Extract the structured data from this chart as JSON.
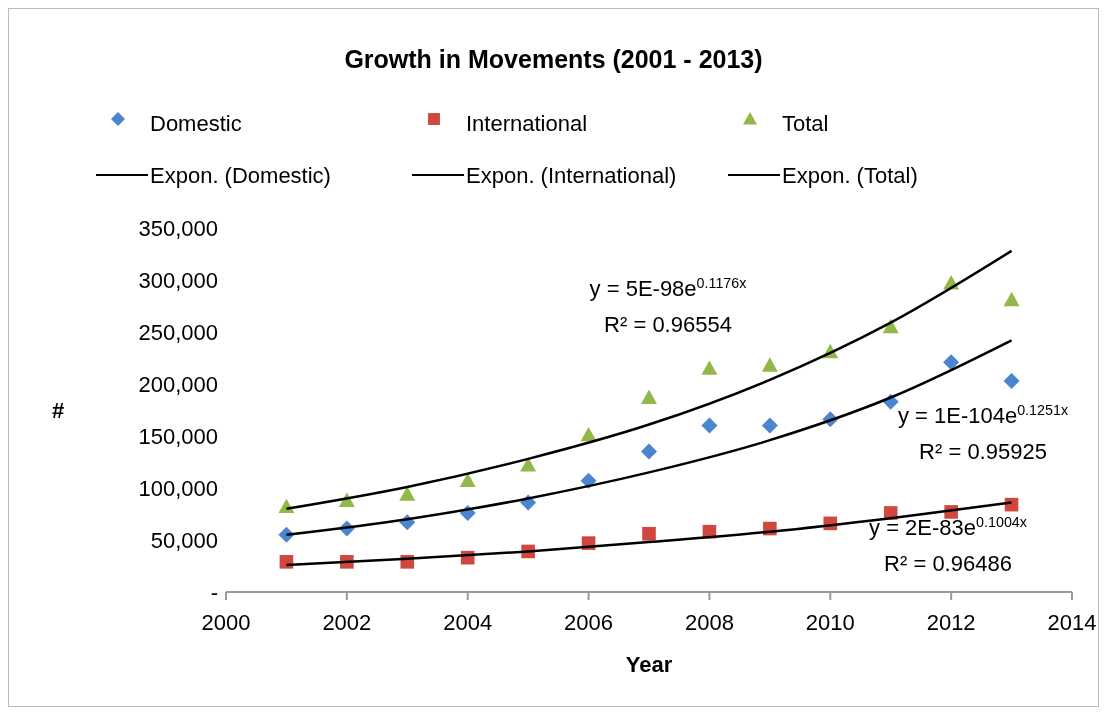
{
  "chart_data": {
    "type": "scatter",
    "title": "Growth in Movements (2001 - 2013)",
    "xlabel": "Year",
    "ylabel": "#",
    "xlim": [
      2000,
      2014
    ],
    "xticks": [
      2000,
      2002,
      2004,
      2006,
      2008,
      2010,
      2012,
      2014
    ],
    "ylim": [
      0,
      350000
    ],
    "yticks": [
      {
        "value": 0,
        "label": "-"
      },
      {
        "value": 50000,
        "label": "50,000"
      },
      {
        "value": 100000,
        "label": "100,000"
      },
      {
        "value": 150000,
        "label": "150,000"
      },
      {
        "value": 200000,
        "label": "200,000"
      },
      {
        "value": 250000,
        "label": "250,000"
      },
      {
        "value": 300000,
        "label": "300,000"
      },
      {
        "value": 350000,
        "label": "350,000"
      }
    ],
    "grid": false,
    "legend": "top",
    "x": [
      2001,
      2002,
      2003,
      2004,
      2005,
      2006,
      2007,
      2008,
      2009,
      2010,
      2011,
      2012,
      2013
    ],
    "series": [
      {
        "name": "Domestic",
        "type": "scatter",
        "marker": "diamond",
        "color": "#4a86cf",
        "values": [
          55000,
          61000,
          67000,
          76000,
          86000,
          107000,
          135000,
          160000,
          160000,
          166000,
          183000,
          221000,
          203000
        ]
      },
      {
        "name": "International",
        "type": "scatter",
        "marker": "square",
        "color": "#d0473f",
        "values": [
          29000,
          29000,
          29000,
          33000,
          39000,
          47000,
          56000,
          58000,
          61000,
          66000,
          76000,
          77000,
          84000
        ]
      },
      {
        "name": "Total",
        "type": "scatter",
        "marker": "triangle",
        "color": "#93b84a",
        "values": [
          82000,
          88000,
          94000,
          107000,
          122000,
          151000,
          187000,
          215000,
          218000,
          231000,
          255000,
          297000,
          281000
        ]
      },
      {
        "name": "Expon. (Domestic)",
        "type": "line",
        "marker": "none",
        "color": "#000000",
        "x": [
          2001,
          2003,
          2005,
          2007,
          2009,
          2011,
          2013
        ],
        "values": [
          55000,
          70000,
          90000,
          115000,
          146000,
          187000,
          242000
        ]
      },
      {
        "name": "Expon. (International)",
        "type": "line",
        "marker": "none",
        "color": "#000000",
        "x": [
          2001,
          2003,
          2005,
          2007,
          2009,
          2011,
          2013
        ],
        "values": [
          26000,
          32000,
          39000,
          48000,
          58000,
          71000,
          86000
        ]
      },
      {
        "name": "Expon. (Total)",
        "type": "line",
        "marker": "none",
        "color": "#000000",
        "x": [
          2001,
          2003,
          2005,
          2007,
          2009,
          2011,
          2013
        ],
        "values": [
          80000,
          101000,
          128000,
          161000,
          204000,
          259000,
          328000
        ]
      }
    ],
    "annotations": [
      "y = 5E-98e$^{0.1176x}$",
      "R² = 0.96554",
      "y = 1E-104e$^{0.1251x}$",
      "R² = 0.95925",
      "y = 2E-83e$^{0.1004x}$",
      "R² = 0.96486"
    ]
  }
}
